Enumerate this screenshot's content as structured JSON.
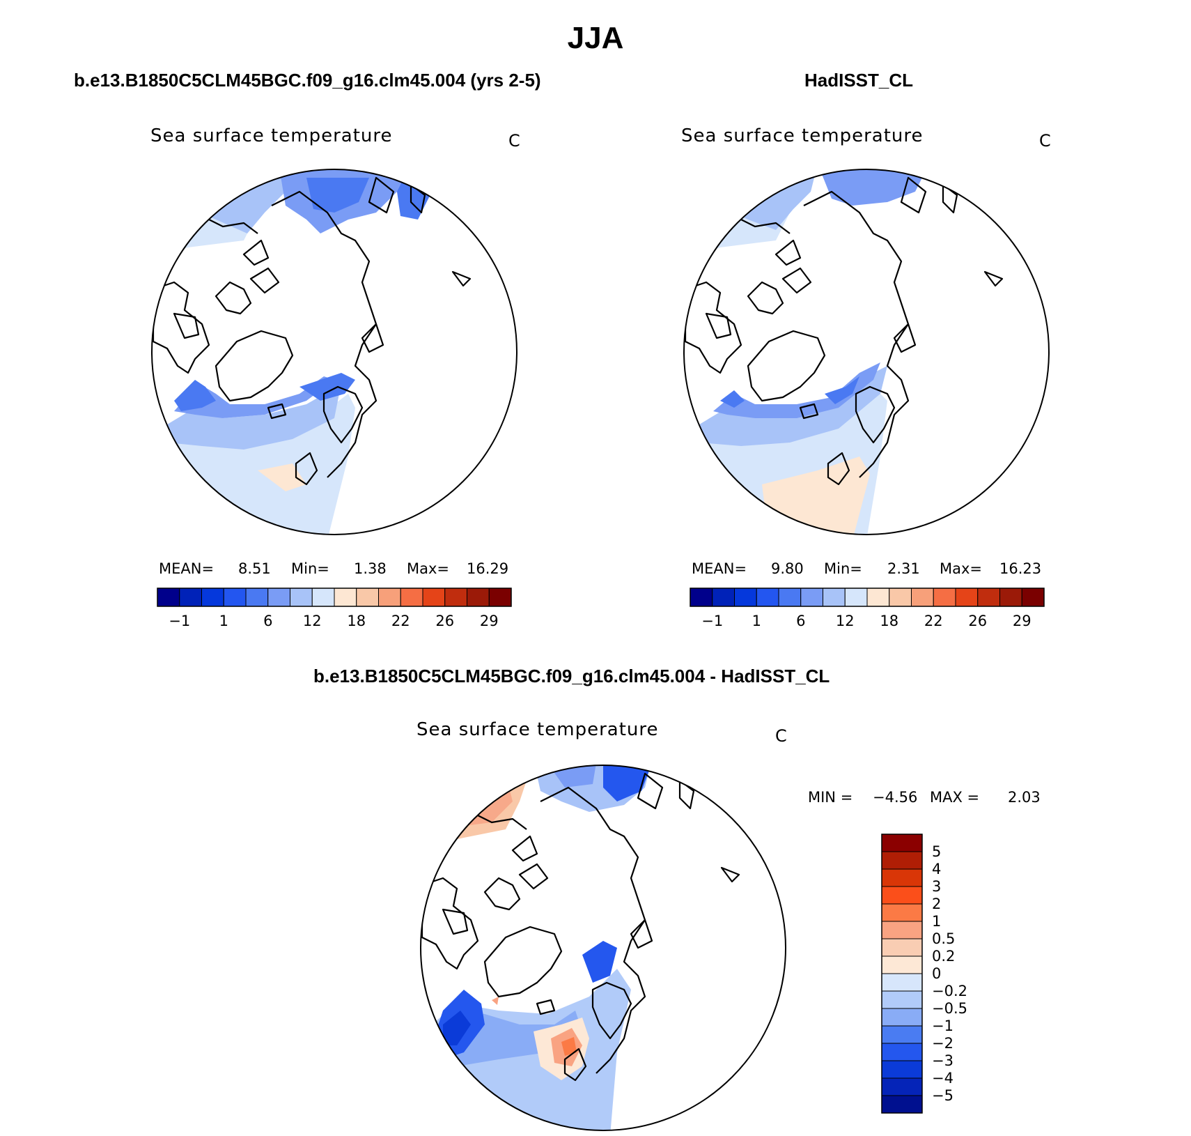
{
  "figure": {
    "title": "JJA"
  },
  "chart_data": [
    {
      "type": "heatmap",
      "panel": "model",
      "title": "b.e13.B1850C5CLM45BGC.f09_g16.clm45.004 (yrs 2-5)",
      "variable": "Sea surface temperature",
      "units": "C",
      "projection": "north polar stereographic",
      "stats": {
        "mean_label": "MEAN=",
        "mean": "8.51",
        "min_label": "Min=",
        "min": "1.38",
        "max_label": "Max=",
        "max": "16.29"
      },
      "colorbar": {
        "orientation": "horizontal",
        "tick_labels": [
          "−1",
          "1",
          "6",
          "12",
          "18",
          "22",
          "26",
          "29"
        ],
        "colors": [
          "#00008b",
          "#0022b8",
          "#0538dc",
          "#2356f0",
          "#4a79f2",
          "#7a9cf5",
          "#a8c3f8",
          "#d6e6fb",
          "#fde7d3",
          "#f9c8a8",
          "#f7a07a",
          "#f56e44",
          "#e54418",
          "#c02d0e",
          "#9b1a08",
          "#7a0000"
        ]
      }
    },
    {
      "type": "heatmap",
      "panel": "observations",
      "title": "HadISST_CL",
      "variable": "Sea surface temperature",
      "units": "C",
      "projection": "north polar stereographic",
      "stats": {
        "mean_label": "MEAN=",
        "mean": "9.80",
        "min_label": "Min=",
        "min": "2.31",
        "max_label": "Max=",
        "max": "16.23"
      },
      "colorbar": {
        "orientation": "horizontal",
        "tick_labels": [
          "−1",
          "1",
          "6",
          "12",
          "18",
          "22",
          "26",
          "29"
        ],
        "colors": [
          "#00008b",
          "#0022b8",
          "#0538dc",
          "#2356f0",
          "#4a79f2",
          "#7a9cf5",
          "#a8c3f8",
          "#d6e6fb",
          "#fde7d3",
          "#f9c8a8",
          "#f7a07a",
          "#f56e44",
          "#e54418",
          "#c02d0e",
          "#9b1a08",
          "#7a0000"
        ]
      }
    },
    {
      "type": "heatmap",
      "panel": "difference",
      "title": "b.e13.B1850C5CLM45BGC.f09_g16.clm45.004 - HadISST_CL",
      "variable": "Sea surface temperature",
      "units": "C",
      "projection": "north polar stereographic",
      "stats": {
        "min_label": "MIN =",
        "min": "−4.56",
        "max_label": "MAX =",
        "max": "2.03"
      },
      "colorbar": {
        "orientation": "vertical",
        "tick_labels": [
          "5",
          "4",
          "3",
          "2",
          "1",
          "0.5",
          "0.2",
          "0",
          "−0.2",
          "−0.5",
          "−1",
          "−2",
          "−3",
          "−4",
          "−5"
        ],
        "colors": [
          "#8b0000",
          "#b01e05",
          "#d93607",
          "#fb4f1a",
          "#fb7a45",
          "#f9a382",
          "#f9cdb3",
          "#fde8d6",
          "#d7e6fb",
          "#b1cbf9",
          "#89acf6",
          "#4a7cf2",
          "#2457ee",
          "#0b3bd8",
          "#0524b8",
          "#00108f"
        ]
      }
    }
  ]
}
